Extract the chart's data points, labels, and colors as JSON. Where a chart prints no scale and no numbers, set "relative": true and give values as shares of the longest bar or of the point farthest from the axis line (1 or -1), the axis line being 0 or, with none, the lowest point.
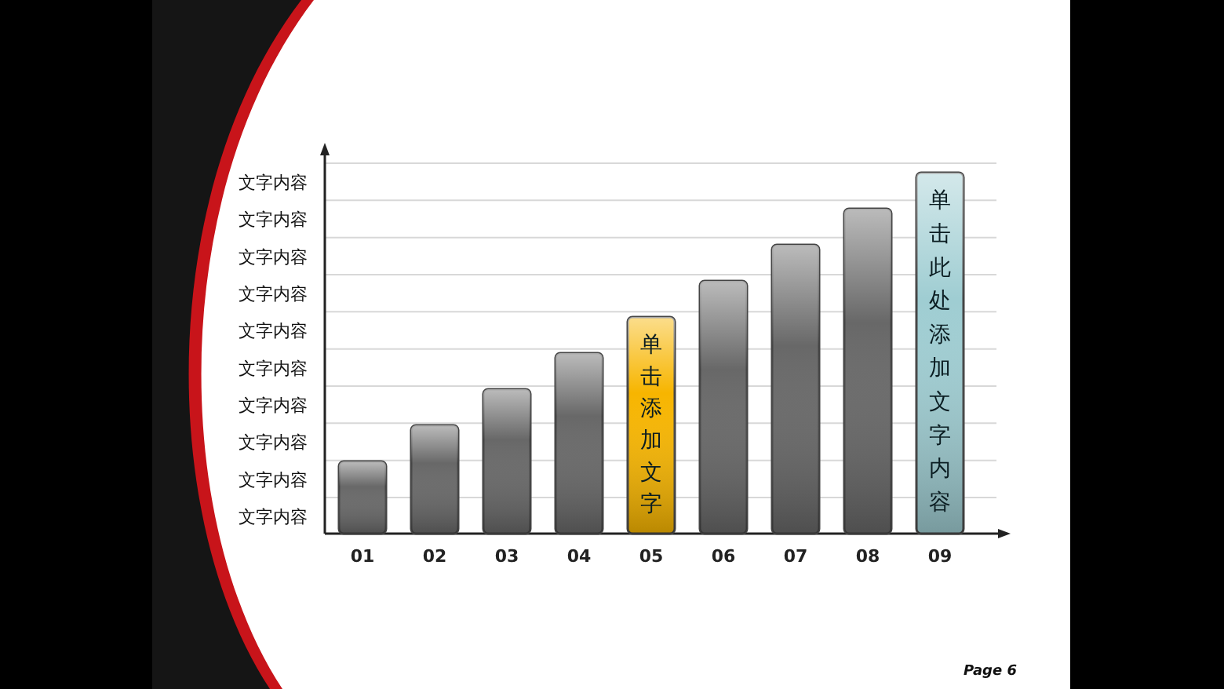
{
  "chart_data": {
    "type": "bar",
    "relative": true,
    "grid": true,
    "categories": [
      "01",
      "02",
      "03",
      "04",
      "05",
      "06",
      "07",
      "08",
      "09"
    ],
    "values": [
      0.2,
      0.3,
      0.4,
      0.5,
      0.6,
      0.7,
      0.8,
      0.9,
      1.0
    ],
    "colors": [
      "#686868",
      "#686868",
      "#686868",
      "#686868",
      "#f7b500",
      "#686868",
      "#686868",
      "#686868",
      "#9fcdd2"
    ],
    "annotations": [
      "文字内容",
      "文字内容",
      "文字内容",
      "文字内容",
      "文字内容",
      "文字内容",
      "文字内容",
      "文字内容",
      "文字内容",
      "文字内容",
      "单击添加文字",
      "单击此处添加文字内容",
      "Page 6"
    ]
  }
}
